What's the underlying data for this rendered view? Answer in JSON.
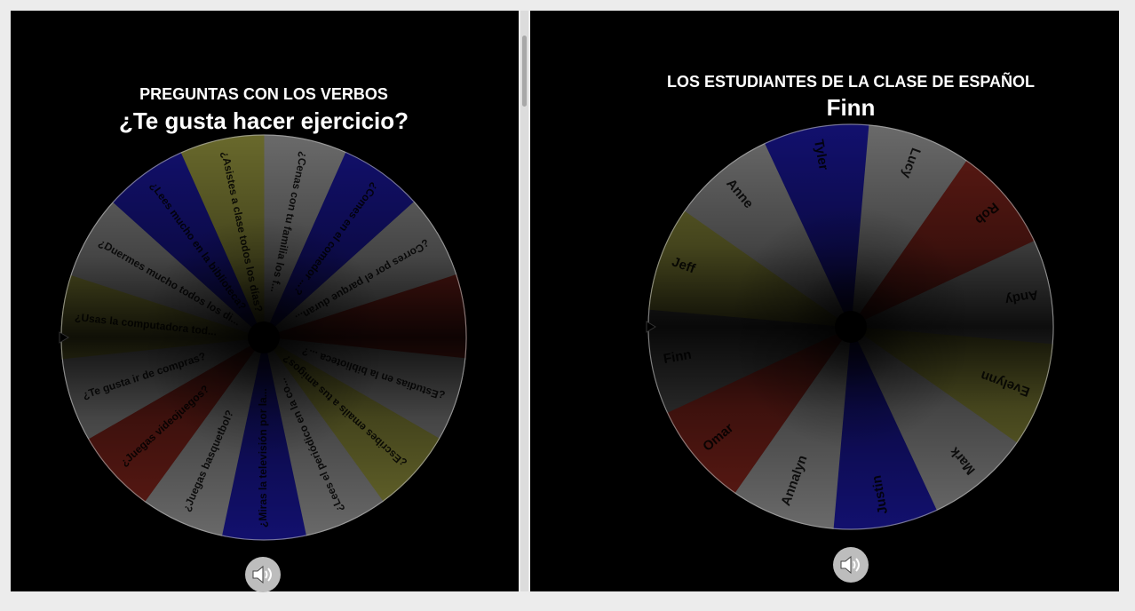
{
  "left_wheel": {
    "title": "PREGUNTAS CON LOS VERBOS",
    "selected": "¿Te gusta hacer ejercicio?",
    "segments": [
      {
        "label": "¿Cenas con tu familia los f...",
        "color": "#6a6a6a"
      },
      {
        "label": "¿Comes en el comedor ...?",
        "color": "#12106e"
      },
      {
        "label": "¿Corres por el parque duran...",
        "color": "#6a6a6a"
      },
      {
        "label": "",
        "color": "#5e1a14"
      },
      {
        "label": "¿Estudias en la biblioteca ...?",
        "color": "#6a6a6a"
      },
      {
        "label": "¿Escribes emails a tus amigos?",
        "color": "#69692c"
      },
      {
        "label": "¿Lees el periódico en la co...",
        "color": "#6a6a6a"
      },
      {
        "label": "¿Miras la televisión por la...",
        "color": "#12106e"
      },
      {
        "label": "¿Juegas basquetbol?",
        "color": "#6a6a6a"
      },
      {
        "label": "¿Juegas videojuegos?",
        "color": "#5e1a14"
      },
      {
        "label": "¿Te gusta ir de compras?",
        "color": "#6a6a6a"
      },
      {
        "label": "¿Usas la computadora tod...",
        "color": "#69692c"
      },
      {
        "label": "¿Duermes mucho todos los di...",
        "color": "#6a6a6a"
      },
      {
        "label": "¿Lees mucho en la biblioteca?",
        "color": "#12106e"
      },
      {
        "label": "¿Asistes a clase todos los días?",
        "color": "#69692c"
      }
    ],
    "sound_icon": "speaker-icon"
  },
  "right_wheel": {
    "title": "LOS ESTUDIANTES DE LA CLASE DE ESPAÑOL",
    "selected": "Finn",
    "segments": [
      {
        "label": "Lucy",
        "color": "#6a6a6a"
      },
      {
        "label": "Rob",
        "color": "#5e1a14"
      },
      {
        "label": "Andy",
        "color": "#5a5a5a"
      },
      {
        "label": "Evelynn",
        "color": "#69692c"
      },
      {
        "label": "Mark",
        "color": "#6a6a6a"
      },
      {
        "label": "Justin",
        "color": "#12106e"
      },
      {
        "label": "Annalyn",
        "color": "#6a6a6a"
      },
      {
        "label": "Omar",
        "color": "#5e1a14"
      },
      {
        "label": "Finn",
        "color": "#3a3a3a"
      },
      {
        "label": "Jeff",
        "color": "#69692c"
      },
      {
        "label": "Anne",
        "color": "#6a6a6a"
      },
      {
        "label": "Tyler",
        "color": "#12106e"
      }
    ],
    "sound_icon": "speaker-icon"
  }
}
